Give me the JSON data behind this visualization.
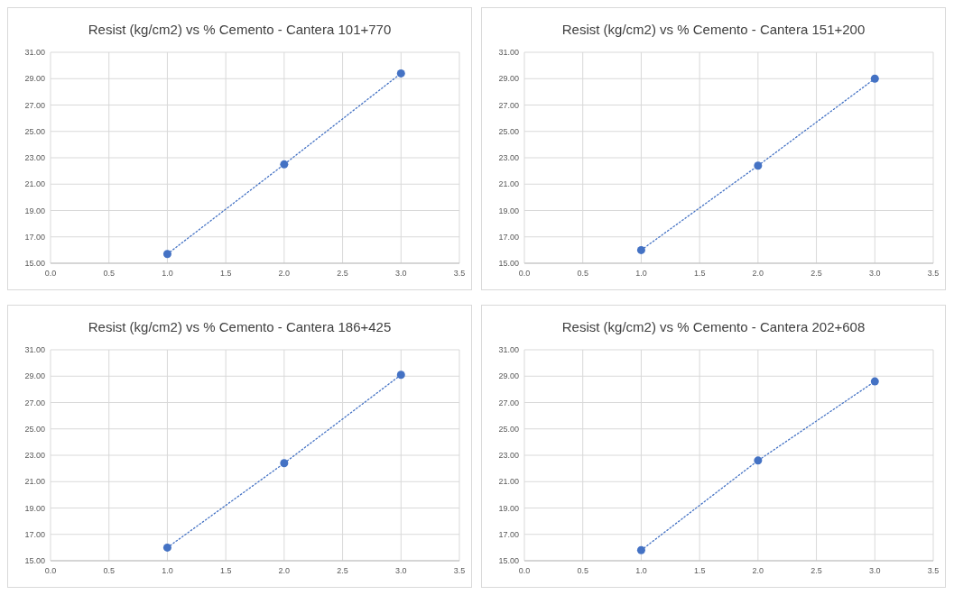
{
  "chart_data": [
    {
      "type": "line",
      "title": "Resist (kg/cm2) vs % Cemento - Cantera 101+770",
      "x": [
        1,
        2,
        3
      ],
      "series": [
        {
          "color": "#4472c4",
          "values": [
            15.7,
            22.5,
            29.4
          ]
        }
      ],
      "marker": "circle",
      "line_style": "dotted",
      "grid": true,
      "xlim": [
        0,
        3.5
      ],
      "ylim": [
        15,
        31
      ],
      "xticks": [
        {
          "value": 0,
          "label": "0.0"
        },
        {
          "value": 0.5,
          "label": "0.5"
        },
        {
          "value": 1,
          "label": "1.0"
        },
        {
          "value": 1.5,
          "label": "1.5"
        },
        {
          "value": 2,
          "label": "2.0"
        },
        {
          "value": 2.5,
          "label": "2.5"
        },
        {
          "value": 3,
          "label": "3.0"
        },
        {
          "value": 3.5,
          "label": "3.5"
        }
      ],
      "yticks": [
        {
          "value": 15,
          "label": "15.00"
        },
        {
          "value": 17,
          "label": "17.00"
        },
        {
          "value": 19,
          "label": "19.00"
        },
        {
          "value": 21,
          "label": "21.00"
        },
        {
          "value": 23,
          "label": "23.00"
        },
        {
          "value": 25,
          "label": "25.00"
        },
        {
          "value": 27,
          "label": "27.00"
        },
        {
          "value": 29,
          "label": "29.00"
        },
        {
          "value": 31,
          "label": "31.00"
        }
      ]
    },
    {
      "type": "line",
      "title": "Resist (kg/cm2) vs % Cemento - Cantera 151+200",
      "x": [
        1,
        2,
        3
      ],
      "series": [
        {
          "color": "#4472c4",
          "values": [
            16.0,
            22.4,
            29.0
          ]
        }
      ],
      "marker": "circle",
      "line_style": "dotted",
      "grid": true,
      "xlim": [
        0,
        3.5
      ],
      "ylim": [
        15,
        31
      ],
      "xticks": [
        {
          "value": 0,
          "label": "0.0"
        },
        {
          "value": 0.5,
          "label": "0.5"
        },
        {
          "value": 1,
          "label": "1.0"
        },
        {
          "value": 1.5,
          "label": "1.5"
        },
        {
          "value": 2,
          "label": "2.0"
        },
        {
          "value": 2.5,
          "label": "2.5"
        },
        {
          "value": 3,
          "label": "3.0"
        },
        {
          "value": 3.5,
          "label": "3.5"
        }
      ],
      "yticks": [
        {
          "value": 15,
          "label": "15.00"
        },
        {
          "value": 17,
          "label": "17.00"
        },
        {
          "value": 19,
          "label": "19.00"
        },
        {
          "value": 21,
          "label": "21.00"
        },
        {
          "value": 23,
          "label": "23.00"
        },
        {
          "value": 25,
          "label": "25.00"
        },
        {
          "value": 27,
          "label": "27.00"
        },
        {
          "value": 29,
          "label": "29.00"
        },
        {
          "value": 31,
          "label": "31.00"
        }
      ]
    },
    {
      "type": "line",
      "title": "Resist (kg/cm2) vs % Cemento - Cantera 186+425",
      "x": [
        1,
        2,
        3
      ],
      "series": [
        {
          "color": "#4472c4",
          "values": [
            16.0,
            22.4,
            29.1
          ]
        }
      ],
      "marker": "circle",
      "line_style": "dotted",
      "grid": true,
      "xlim": [
        0,
        3.5
      ],
      "ylim": [
        15,
        31
      ],
      "xticks": [
        {
          "value": 0,
          "label": "0.0"
        },
        {
          "value": 0.5,
          "label": "0.5"
        },
        {
          "value": 1,
          "label": "1.0"
        },
        {
          "value": 1.5,
          "label": "1.5"
        },
        {
          "value": 2,
          "label": "2.0"
        },
        {
          "value": 2.5,
          "label": "2.5"
        },
        {
          "value": 3,
          "label": "3.0"
        },
        {
          "value": 3.5,
          "label": "3.5"
        }
      ],
      "yticks": [
        {
          "value": 15,
          "label": "15.00"
        },
        {
          "value": 17,
          "label": "17.00"
        },
        {
          "value": 19,
          "label": "19.00"
        },
        {
          "value": 21,
          "label": "21.00"
        },
        {
          "value": 23,
          "label": "23.00"
        },
        {
          "value": 25,
          "label": "25.00"
        },
        {
          "value": 27,
          "label": "27.00"
        },
        {
          "value": 29,
          "label": "29.00"
        },
        {
          "value": 31,
          "label": "31.00"
        }
      ]
    },
    {
      "type": "line",
      "title": "Resist (kg/cm2) vs % Cemento - Cantera 202+608",
      "x": [
        1,
        2,
        3
      ],
      "series": [
        {
          "color": "#4472c4",
          "values": [
            15.8,
            22.6,
            28.6
          ]
        }
      ],
      "marker": "circle",
      "line_style": "dotted",
      "grid": true,
      "xlim": [
        0,
        3.5
      ],
      "ylim": [
        15,
        31
      ],
      "xticks": [
        {
          "value": 0,
          "label": "0.0"
        },
        {
          "value": 0.5,
          "label": "0.5"
        },
        {
          "value": 1,
          "label": "1.0"
        },
        {
          "value": 1.5,
          "label": "1.5"
        },
        {
          "value": 2,
          "label": "2.0"
        },
        {
          "value": 2.5,
          "label": "2.5"
        },
        {
          "value": 3,
          "label": "3.0"
        },
        {
          "value": 3.5,
          "label": "3.5"
        }
      ],
      "yticks": [
        {
          "value": 15,
          "label": "15.00"
        },
        {
          "value": 17,
          "label": "17.00"
        },
        {
          "value": 19,
          "label": "19.00"
        },
        {
          "value": 21,
          "label": "21.00"
        },
        {
          "value": 23,
          "label": "23.00"
        },
        {
          "value": 25,
          "label": "25.00"
        },
        {
          "value": 27,
          "label": "27.00"
        },
        {
          "value": 29,
          "label": "29.00"
        },
        {
          "value": 31,
          "label": "31.00"
        }
      ]
    }
  ]
}
